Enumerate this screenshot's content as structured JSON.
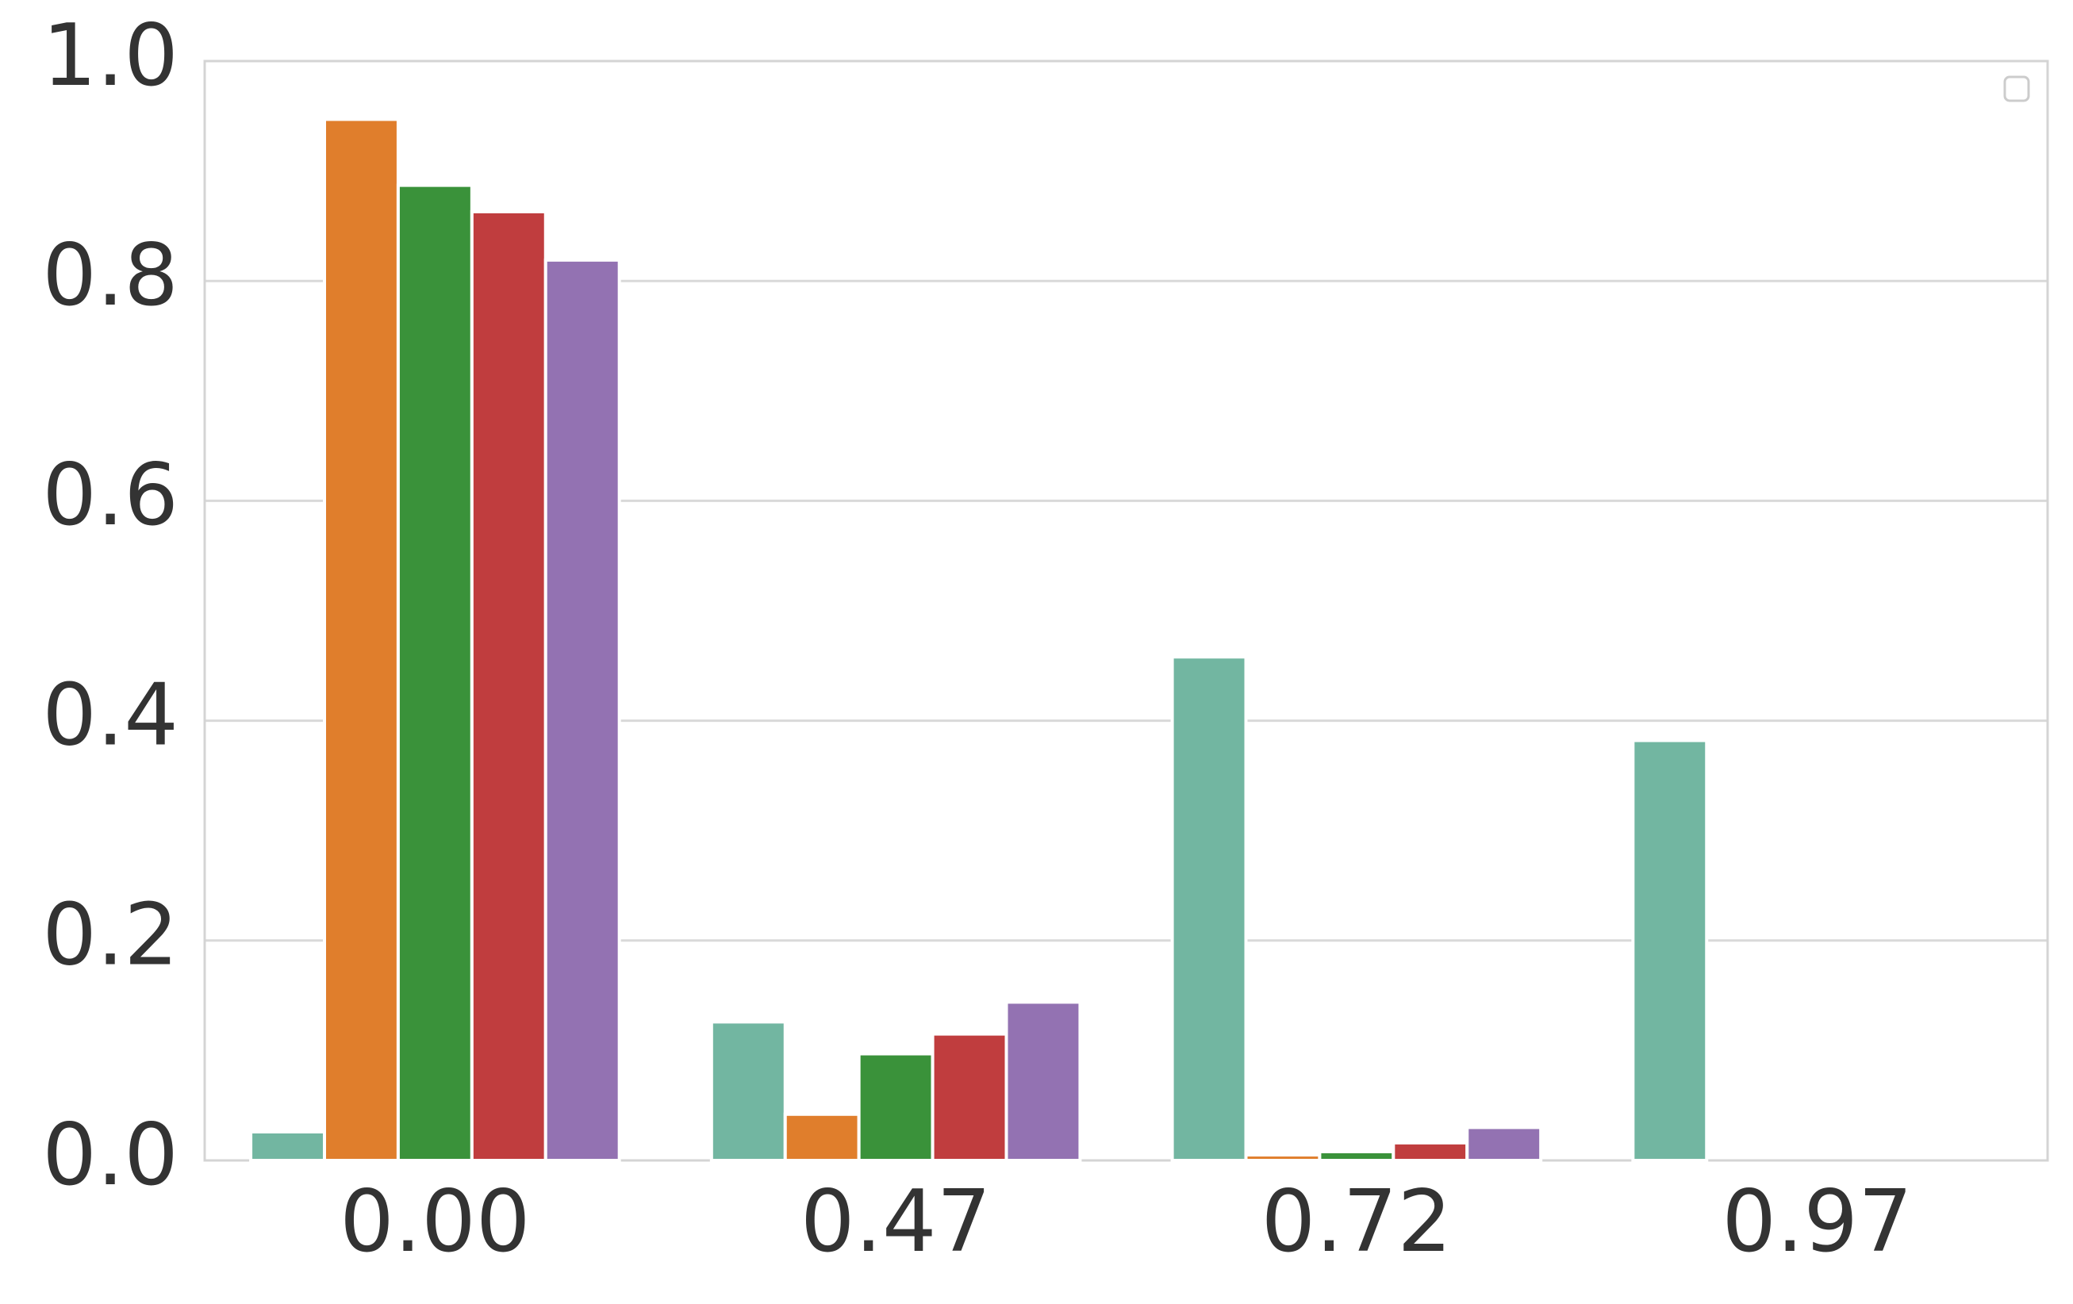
{
  "chart_data": {
    "type": "bar",
    "categories": [
      "0.00",
      "0.47",
      "0.72",
      "0.97"
    ],
    "series": [
      {
        "color": "#72b6a1",
        "values": [
          0.026,
          0.126,
          0.458,
          0.382
        ]
      },
      {
        "color": "#e07e2c",
        "values": [
          0.947,
          0.042,
          0.005,
          0
        ]
      },
      {
        "color": "#3a923a",
        "values": [
          0.887,
          0.097,
          0.008,
          0
        ]
      },
      {
        "color": "#c03d3e",
        "values": [
          0.863,
          0.115,
          0.016,
          0
        ]
      },
      {
        "color": "#9372b2",
        "values": [
          0.819,
          0.144,
          0.03,
          0
        ]
      }
    ],
    "ylim": [
      0,
      1
    ],
    "yticks": [
      {
        "value": 0,
        "label": "0.0"
      },
      0.2,
      0.4,
      0.6,
      0.8,
      {
        "value": 1,
        "label": "1.0"
      }
    ],
    "grid": true
  }
}
